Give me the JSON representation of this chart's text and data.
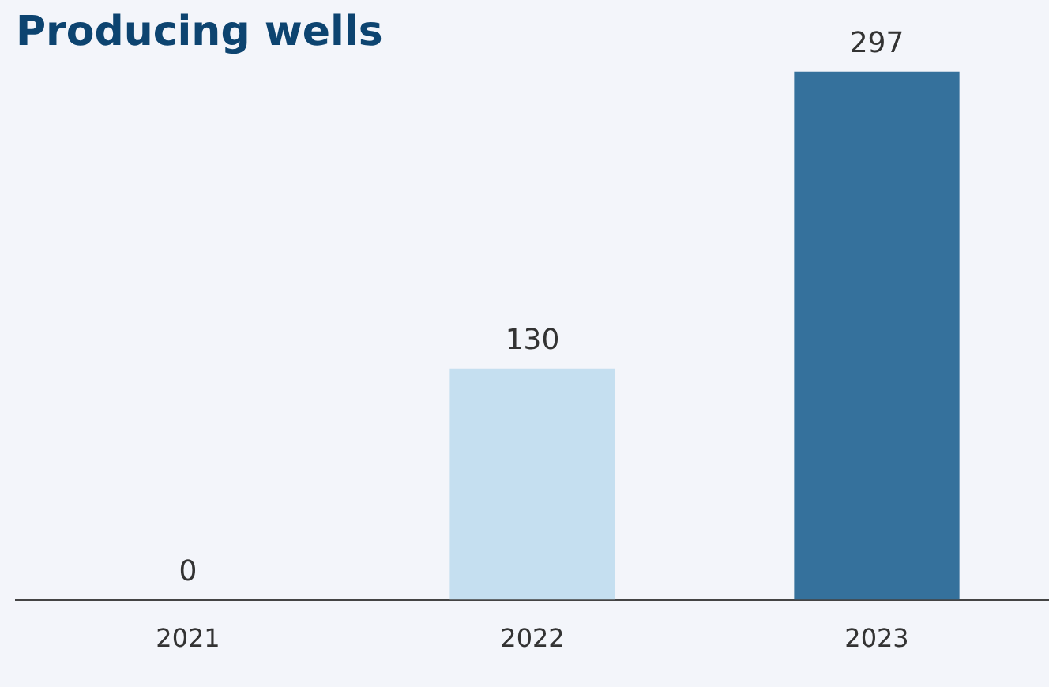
{
  "chart_data": {
    "type": "bar",
    "title": "Producing wells",
    "categories": [
      "2021",
      "2022",
      "2023"
    ],
    "values": [
      0,
      130,
      297
    ],
    "colors": [
      "#c5dff0",
      "#c5dff0",
      "#35719c"
    ],
    "data_labels": true,
    "grid": false,
    "legend": false
  }
}
